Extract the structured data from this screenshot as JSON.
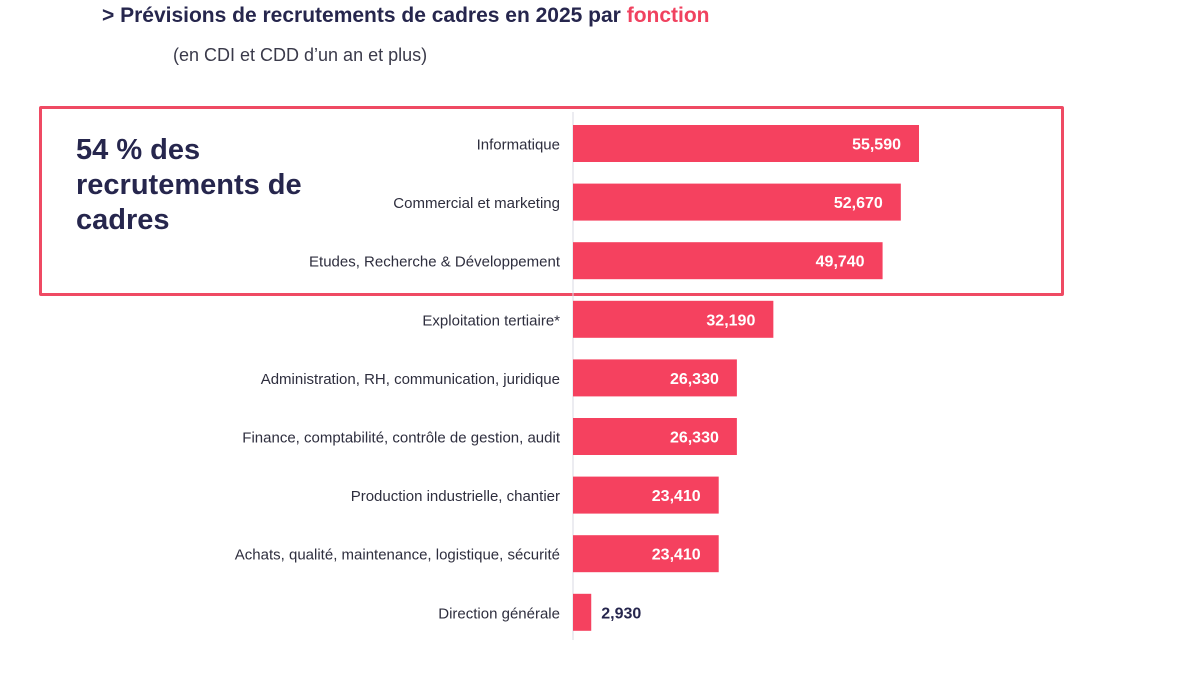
{
  "header": {
    "title_prefix": "> Prévisions de recrutements de cadres en 2025 par",
    "title_accent": "fonction",
    "subtitle": "(en CDI et CDD d’un an et plus)"
  },
  "callout": {
    "text": "54 % des recrutements de cadres"
  },
  "colors": {
    "bar": "#f5415f",
    "title": "#26264d",
    "accent": "#f0425f",
    "box_border": "#ef4a63"
  },
  "chart_data": {
    "type": "bar",
    "orientation": "horizontal",
    "categories": [
      "Informatique",
      "Commercial et marketing",
      "Etudes, Recherche & Développement",
      "Exploitation tertiaire*",
      "Administration, RH, communication, juridique",
      "Finance, comptabilité, contrôle de gestion, audit",
      "Production industrielle, chantier",
      "Achats, qualité, maintenance, logistique, sécurité",
      "Direction générale"
    ],
    "values": [
      55590,
      52670,
      49740,
      32190,
      26330,
      26330,
      23410,
      23410,
      2930
    ],
    "value_labels": [
      "55,590",
      "52,670",
      "49,740",
      "32,190",
      "26,330",
      "26,330",
      "23,410",
      "23,410",
      "2,930"
    ],
    "title": "> Prévisions de recrutements de cadres en 2025 par fonction",
    "xlabel": "",
    "ylabel": "",
    "grid": false,
    "highlighted_categories": 3
  }
}
